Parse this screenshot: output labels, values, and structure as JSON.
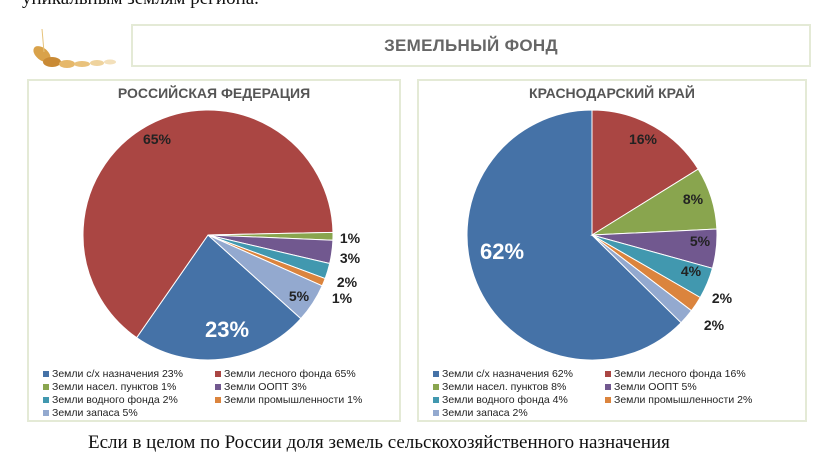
{
  "top_text": "уникальным землям региона.",
  "bottom_text": "Если в целом по России доля земель сельскохозяйственного назначения",
  "title": "ЗЕМЕЛЬНЫЙ ФОНД",
  "colors": {
    "agri": "#4572a7",
    "forest": "#aa4643",
    "settle": "#89a54e",
    "oopt": "#71588f",
    "water": "#4198af",
    "industry": "#db843d",
    "reserve": "#93a9cf"
  },
  "chart_data": [
    {
      "type": "pie",
      "title": "РОССИЙСКАЯ ФЕДЕРАЦИЯ",
      "slices": [
        {
          "key": "agri",
          "legend": "Земли с/х назначения 23%",
          "value": 23,
          "label": "23%"
        },
        {
          "key": "forest",
          "legend": "Земли лесного фонда 65%",
          "value": 65,
          "label": "65%"
        },
        {
          "key": "settle",
          "legend": "Земли насел. пунктов 1%",
          "value": 1,
          "label": "1%"
        },
        {
          "key": "oopt",
          "legend": "Земли ООПТ 3%",
          "value": 3,
          "label": "3%"
        },
        {
          "key": "water",
          "legend": "Земли водного фонда 2%",
          "value": 2,
          "label": "2%"
        },
        {
          "key": "industry",
          "legend": "Земли промышленности 1%",
          "value": 1,
          "label": "1%"
        },
        {
          "key": "reserve",
          "legend": "Земли запаса 5%",
          "value": 5,
          "label": "5%"
        }
      ]
    },
    {
      "type": "pie",
      "title": "КРАСНОДАРСКИЙ КРАЙ",
      "slices": [
        {
          "key": "agri",
          "legend": "Земли с/х назначения 62%",
          "value": 62,
          "label": "62%"
        },
        {
          "key": "forest",
          "legend": "Земли лесного фонда 16%",
          "value": 16,
          "label": "16%"
        },
        {
          "key": "settle",
          "legend": "Земли насел. пунктов 8%",
          "value": 8,
          "label": "8%"
        },
        {
          "key": "oopt",
          "legend": "Земли ООПТ 5%",
          "value": 5,
          "label": "5%"
        },
        {
          "key": "water",
          "legend": "Земли водного фонда 4%",
          "value": 4,
          "label": "4%"
        },
        {
          "key": "industry",
          "legend": "Земли промышленности 2%",
          "value": 2,
          "label": "2%"
        },
        {
          "key": "reserve",
          "legend": "Земли запаса 2%",
          "value": 2,
          "label": "2%"
        }
      ]
    }
  ]
}
